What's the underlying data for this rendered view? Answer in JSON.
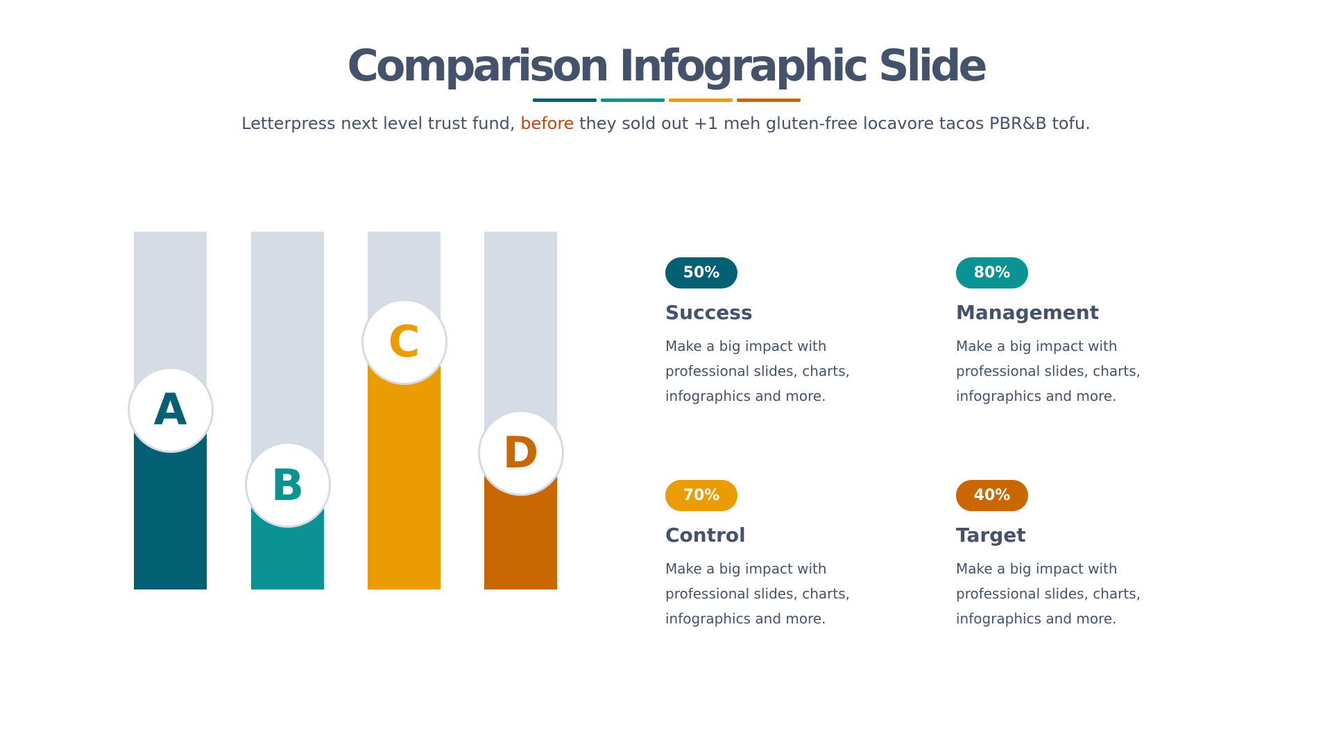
{
  "header": {
    "title": "Comparison Infographic Slide",
    "subtitle_before": "Letterpress next level trust fund, ",
    "subtitle_highlight": "before",
    "subtitle_after": " they sold out +1 meh gluten-free locavore tacos PBR&B tofu.",
    "underline_colors": [
      "#036173",
      "#0b9394",
      "#ec9c03",
      "#c96702"
    ]
  },
  "colors": {
    "track": "#d5dce5",
    "text": "#44526b",
    "highlight": "#c0470f"
  },
  "bars": [
    {
      "label": "A",
      "color": "#036173",
      "fill_fraction": 0.44
    },
    {
      "label": "B",
      "color": "#0b9394",
      "fill_fraction": 0.23
    },
    {
      "label": "C",
      "color": "#ec9c03",
      "fill_fraction": 0.63
    },
    {
      "label": "D",
      "color": "#c96702",
      "fill_fraction": 0.32
    }
  ],
  "cards": [
    {
      "percent": "50%",
      "title": "Success",
      "color": "#036173",
      "text": "Make a big impact with professional slides, charts, infographics and more."
    },
    {
      "percent": "80%",
      "title": "Management",
      "color": "#0b9394",
      "text": "Make a big impact with professional slides, charts, infographics and more."
    },
    {
      "percent": "70%",
      "title": "Control",
      "color": "#ec9c03",
      "text": "Make a big impact with professional slides, charts, infographics and more."
    },
    {
      "percent": "40%",
      "title": "Target",
      "color": "#c96702",
      "text": "Make a big impact with professional slides, charts, infographics and more."
    }
  ]
}
